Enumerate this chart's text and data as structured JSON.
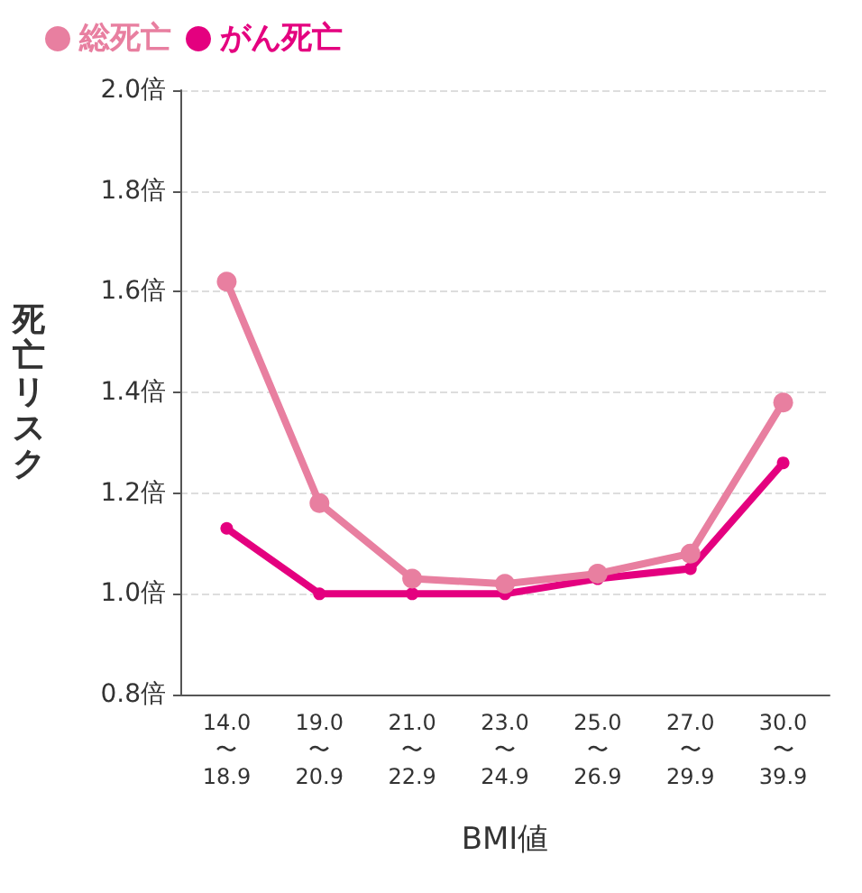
{
  "chart_data": {
    "type": "line",
    "xlabel": "BMI値",
    "ylabel": "死亡リスク",
    "categories": [
      "14.0〜18.9",
      "19.0〜20.9",
      "21.0〜22.9",
      "23.0〜24.9",
      "25.0〜26.9",
      "27.0〜29.9",
      "30.0〜39.9"
    ],
    "series": [
      {
        "name": "総死亡",
        "color": "#e87fa0",
        "values": [
          1.62,
          1.18,
          1.03,
          1.02,
          1.04,
          1.08,
          1.38
        ]
      },
      {
        "name": "がん死亡",
        "color": "#e4007f",
        "values": [
          1.13,
          1.0,
          1.0,
          1.0,
          1.03,
          1.05,
          1.26
        ]
      }
    ],
    "ylim": [
      0.8,
      2.0
    ],
    "yticks": [
      {
        "value": 0.8,
        "label": "0.8倍"
      },
      {
        "value": 1.0,
        "label": "1.0倍"
      },
      {
        "value": 1.2,
        "label": "1.2倍"
      },
      {
        "value": 1.4,
        "label": "1.4倍"
      },
      {
        "value": 1.6,
        "label": "1.6倍"
      },
      {
        "value": 1.8,
        "label": "1.8倍"
      },
      {
        "value": 2.0,
        "label": "2.0倍"
      }
    ],
    "grid": "y",
    "legend": "top left",
    "marker": "circle",
    "line_style": "solid"
  }
}
